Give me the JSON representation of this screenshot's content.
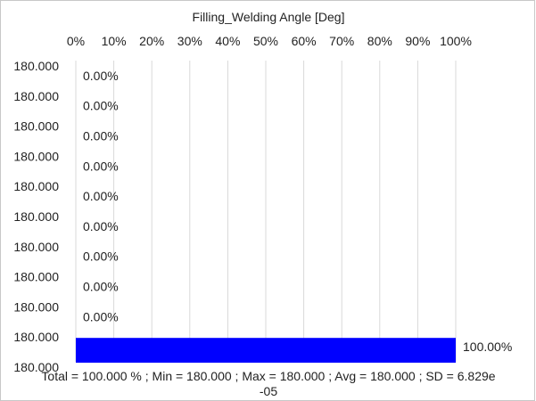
{
  "chart_data": {
    "type": "bar",
    "orientation": "horizontal",
    "title": "Filling_Welding Angle [Deg]",
    "x_axis_position": "top",
    "x_ticks": [
      "0%",
      "10%",
      "20%",
      "30%",
      "40%",
      "50%",
      "60%",
      "70%",
      "80%",
      "90%",
      "100%"
    ],
    "xlim": [
      0,
      100
    ],
    "y_bin_edges": [
      "180.000",
      "180.000",
      "180.000",
      "180.000",
      "180.000",
      "180.000",
      "180.000",
      "180.000",
      "180.000",
      "180.000",
      "180.000"
    ],
    "values": [
      0,
      0,
      0,
      0,
      0,
      0,
      0,
      0,
      0,
      100
    ],
    "value_labels": [
      "0.00%",
      "0.00%",
      "0.00%",
      "0.00%",
      "0.00%",
      "0.00%",
      "0.00%",
      "0.00%",
      "0.00%",
      "100.00%"
    ],
    "grid": "vertical",
    "bar_color": "#0000ff"
  },
  "footer": {
    "line1": "Total = 100.000 % ; Min = 180.000 ;   Max = 180.000 ;   Avg = 180.000 ;   SD = 6.829e",
    "line2": "-05"
  },
  "colors": {
    "grid": "#d9d9d9",
    "frame": "#c8c8c8",
    "text": "#222222"
  }
}
